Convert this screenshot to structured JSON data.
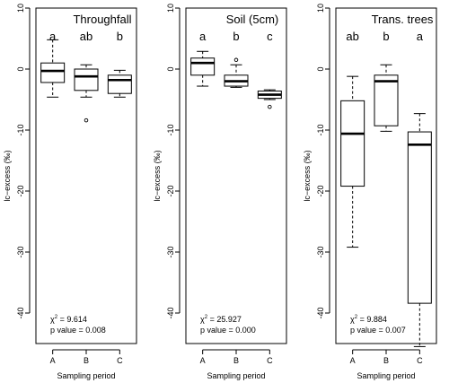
{
  "chart_data": [
    {
      "type": "boxplot",
      "title": "Throughfall",
      "xlabel": "Sampling period",
      "ylabel": "lc−excess (‰)",
      "ylim": [
        -45,
        10
      ],
      "yticks": [
        10,
        0,
        -10,
        -20,
        -30,
        -40
      ],
      "categories": [
        "A",
        "B",
        "C"
      ],
      "letters": [
        "a",
        "ab",
        "b"
      ],
      "chi_label": "χ",
      "chi_value": "9.614",
      "p_label": "p value =",
      "p_value": "0.008",
      "boxes": [
        {
          "category": "A",
          "min": -4.6,
          "q1": -2.2,
          "median": -0.3,
          "q3": 1.0,
          "max": 4.8,
          "outliers": []
        },
        {
          "category": "B",
          "min": -4.6,
          "q1": -3.5,
          "median": -1.2,
          "q3": 0.0,
          "max": 0.7,
          "outliers": [
            -8.4
          ]
        },
        {
          "category": "C",
          "min": -4.6,
          "q1": -4.0,
          "median": -1.8,
          "q3": -1.0,
          "max": -0.2,
          "outliers": []
        }
      ]
    },
    {
      "type": "boxplot",
      "title": "Soil (5cm)",
      "xlabel": "Sampling period",
      "ylabel": "lc−excess (‰)",
      "ylim": [
        -45,
        10
      ],
      "yticks": [
        10,
        0,
        -10,
        -20,
        -30,
        -40
      ],
      "categories": [
        "A",
        "B",
        "C"
      ],
      "letters": [
        "a",
        "b",
        "c"
      ],
      "chi_label": "χ",
      "chi_value": "25.927",
      "p_label": "p value =",
      "p_value": "0.000",
      "boxes": [
        {
          "category": "A",
          "min": -2.8,
          "q1": -1.0,
          "median": 1.0,
          "q3": 1.8,
          "max": 2.9,
          "outliers": []
        },
        {
          "category": "B",
          "min": -3.0,
          "q1": -2.8,
          "median": -2.0,
          "q3": -1.0,
          "max": 0.7,
          "outliers": [
            1.5
          ]
        },
        {
          "category": "C",
          "min": -5.0,
          "q1": -4.8,
          "median": -4.2,
          "q3": -3.6,
          "max": -3.4,
          "outliers": [
            -6.2
          ]
        }
      ]
    },
    {
      "type": "boxplot",
      "title": "Trans. trees",
      "xlabel": "Sampling period",
      "ylabel": "lc−excess (‰)",
      "ylim": [
        -45,
        10
      ],
      "yticks": [
        10,
        0,
        -10,
        -20,
        -30,
        -40
      ],
      "categories": [
        "A",
        "B",
        "C"
      ],
      "letters": [
        "ab",
        "b",
        "a"
      ],
      "chi_label": "χ",
      "chi_value": "9.884",
      "p_label": "p value =",
      "p_value": "0.007",
      "boxes": [
        {
          "category": "A",
          "min": -29.2,
          "q1": -19.2,
          "median": -10.6,
          "q3": -5.2,
          "max": -1.2,
          "outliers": []
        },
        {
          "category": "B",
          "min": -10.2,
          "q1": -9.3,
          "median": -2.0,
          "q3": -1.0,
          "max": 0.7,
          "outliers": []
        },
        {
          "category": "C",
          "min": -45.5,
          "q1": -38.4,
          "median": -12.4,
          "q3": -10.3,
          "max": -7.3,
          "outliers": []
        }
      ]
    }
  ]
}
